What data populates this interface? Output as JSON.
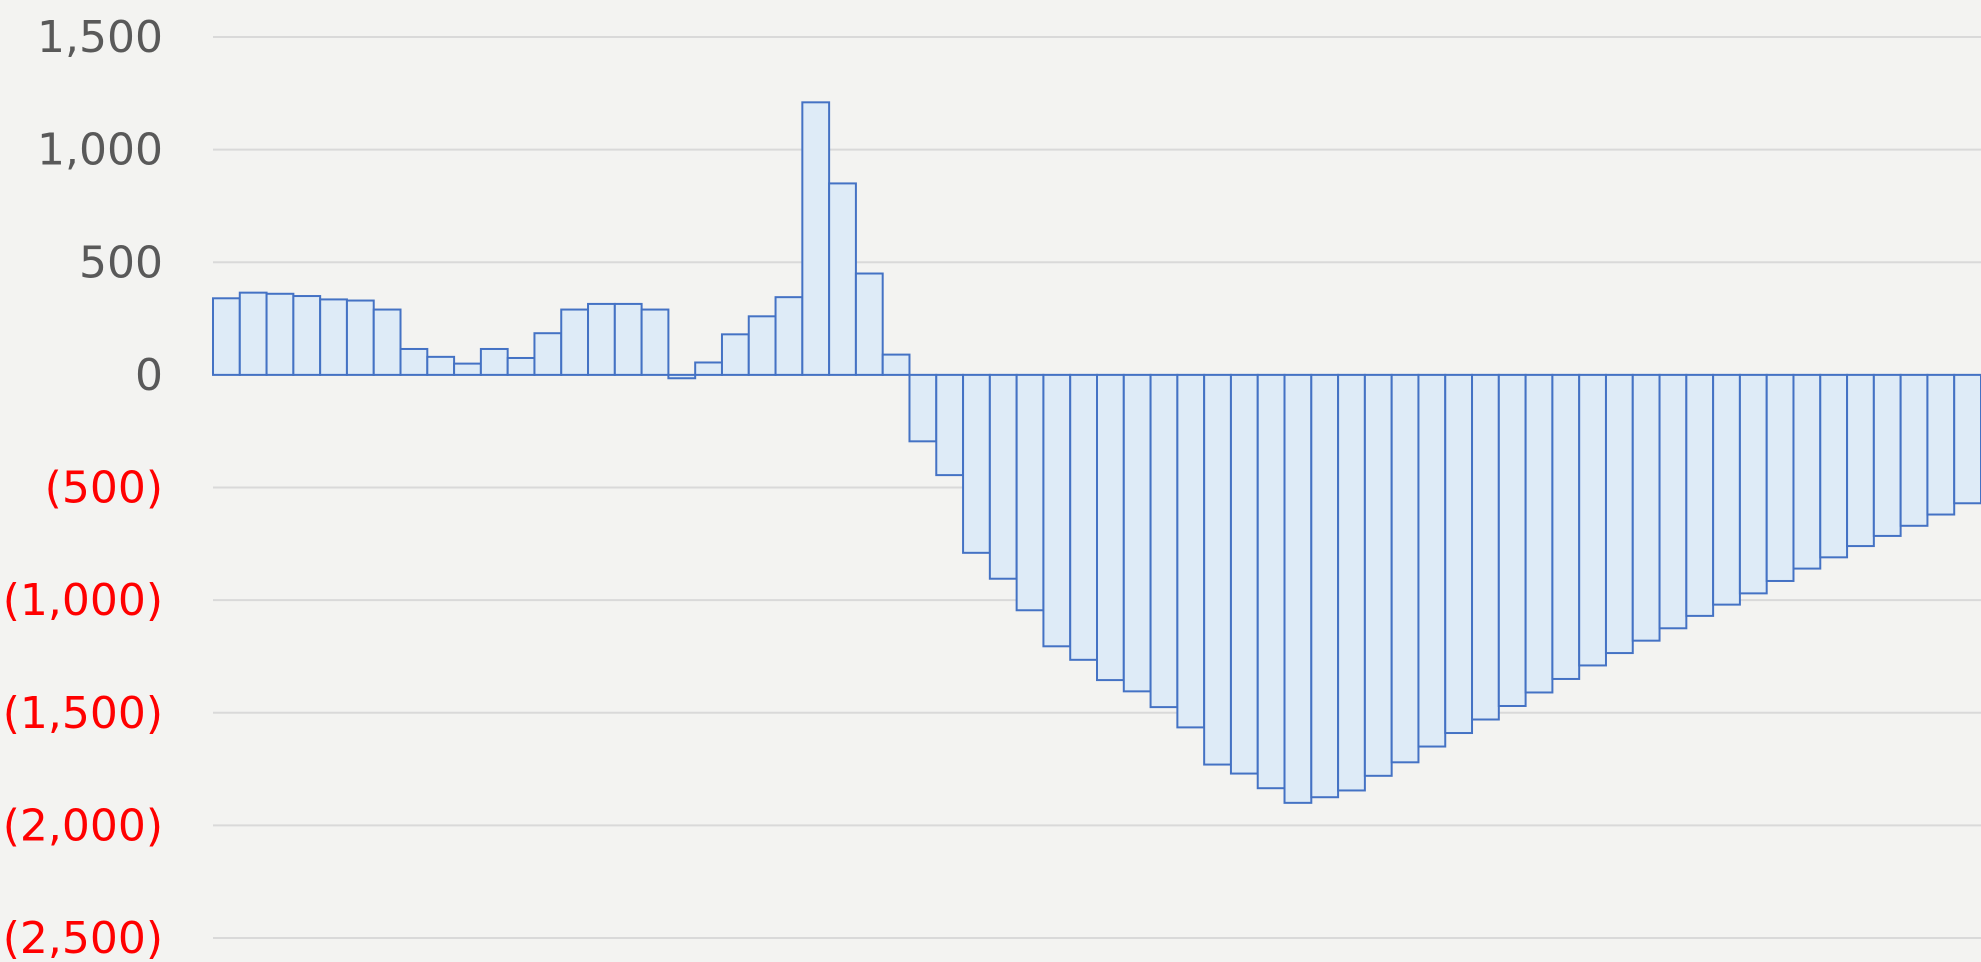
{
  "chart_data": {
    "type": "bar",
    "title": "",
    "xlabel": "",
    "ylabel": "",
    "ylim": [
      -2500,
      1500
    ],
    "grid": true,
    "legend": "none",
    "colors": {
      "bar_fill": "#deebf7",
      "bar_stroke": "#4472c4",
      "grid": "#d9d9d9",
      "positive_label": "#595959",
      "negative_label": "#ff0000",
      "background": "#f3f3f1"
    },
    "y_ticks": [
      {
        "value": 1500,
        "label": "1,500"
      },
      {
        "value": 1000,
        "label": "1,000"
      },
      {
        "value": 500,
        "label": "500"
      },
      {
        "value": 0,
        "label": "0"
      },
      {
        "value": -500,
        "label": "(500)"
      },
      {
        "value": -1000,
        "label": "(1,000)"
      },
      {
        "value": -1500,
        "label": "(1,500)"
      },
      {
        "value": -2000,
        "label": "(2,000)"
      },
      {
        "value": -2500,
        "label": "(2,500)"
      }
    ],
    "values": [
      340,
      365,
      360,
      350,
      335,
      330,
      290,
      115,
      80,
      50,
      115,
      75,
      185,
      290,
      315,
      315,
      290,
      -15,
      55,
      180,
      260,
      345,
      1210,
      850,
      450,
      90,
      -295,
      -445,
      -790,
      -905,
      -1045,
      -1205,
      -1265,
      -1355,
      -1405,
      -1475,
      -1565,
      -1730,
      -1770,
      -1835,
      -1900,
      -1875,
      -1845,
      -1780,
      -1720,
      -1650,
      -1590,
      -1530,
      -1470,
      -1410,
      -1350,
      -1290,
      -1235,
      -1180,
      -1125,
      -1070,
      -1020,
      -970,
      -915,
      -860,
      -810,
      -760,
      -715,
      -670,
      -620,
      -570
    ]
  }
}
